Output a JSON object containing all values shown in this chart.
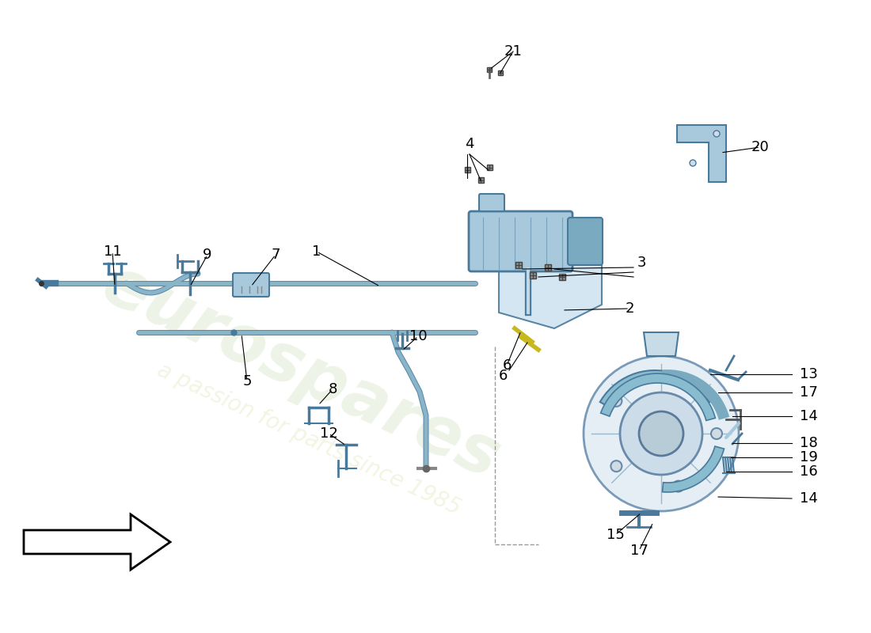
{
  "background_color": "#ffffff",
  "cable_color": "#8ab4c8",
  "cable_stroke": 3.5,
  "component_fill": "#a8c8dc",
  "component_edge": "#4a7a9b",
  "label_fontsize": 13
}
